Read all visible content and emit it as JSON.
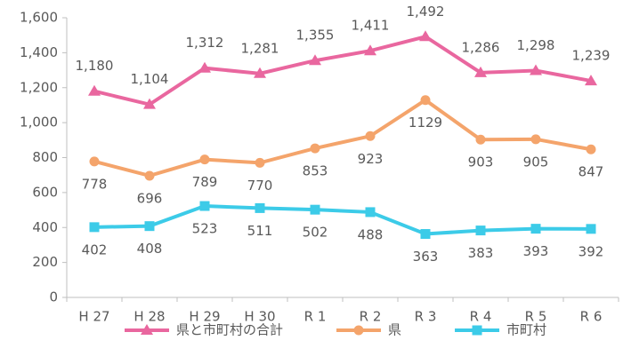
{
  "chart_data": {
    "type": "line",
    "categories": [
      "H 27",
      "H 28",
      "H 29",
      "H 30",
      "R 1",
      "R 2",
      "R 3",
      "R 4",
      "R 5",
      "R 6"
    ],
    "series": [
      {
        "name": "県と市町村の合計",
        "color": "#e9679f",
        "marker": "triangle",
        "label_side": "above",
        "values": [
          1180,
          1104,
          1312,
          1281,
          1355,
          1411,
          1492,
          1286,
          1298,
          1239
        ],
        "value_labels": [
          "1,180",
          "1,104",
          "1,312",
          "1,281",
          "1,355",
          "1,411",
          "1,492",
          "1,286",
          "1,298",
          "1,239"
        ]
      },
      {
        "name": "県",
        "color": "#f4a46b",
        "marker": "circle",
        "label_side": "below",
        "values": [
          778,
          696,
          789,
          770,
          853,
          923,
          1129,
          903,
          905,
          847
        ]
      },
      {
        "name": "市町村",
        "color": "#3ccbe8",
        "marker": "square",
        "label_side": "below",
        "values": [
          402,
          408,
          523,
          511,
          502,
          488,
          363,
          383,
          393,
          392
        ]
      }
    ],
    "ylim": [
      0,
      1600
    ],
    "yticks": [
      0,
      200,
      400,
      600,
      800,
      {
        "value": 1000,
        "label": "1,000"
      },
      {
        "value": 1200,
        "label": "1,200"
      },
      {
        "value": 1400,
        "label": "1,400"
      },
      {
        "value": 1600,
        "label": "1,600"
      }
    ],
    "legend": "bottom"
  }
}
